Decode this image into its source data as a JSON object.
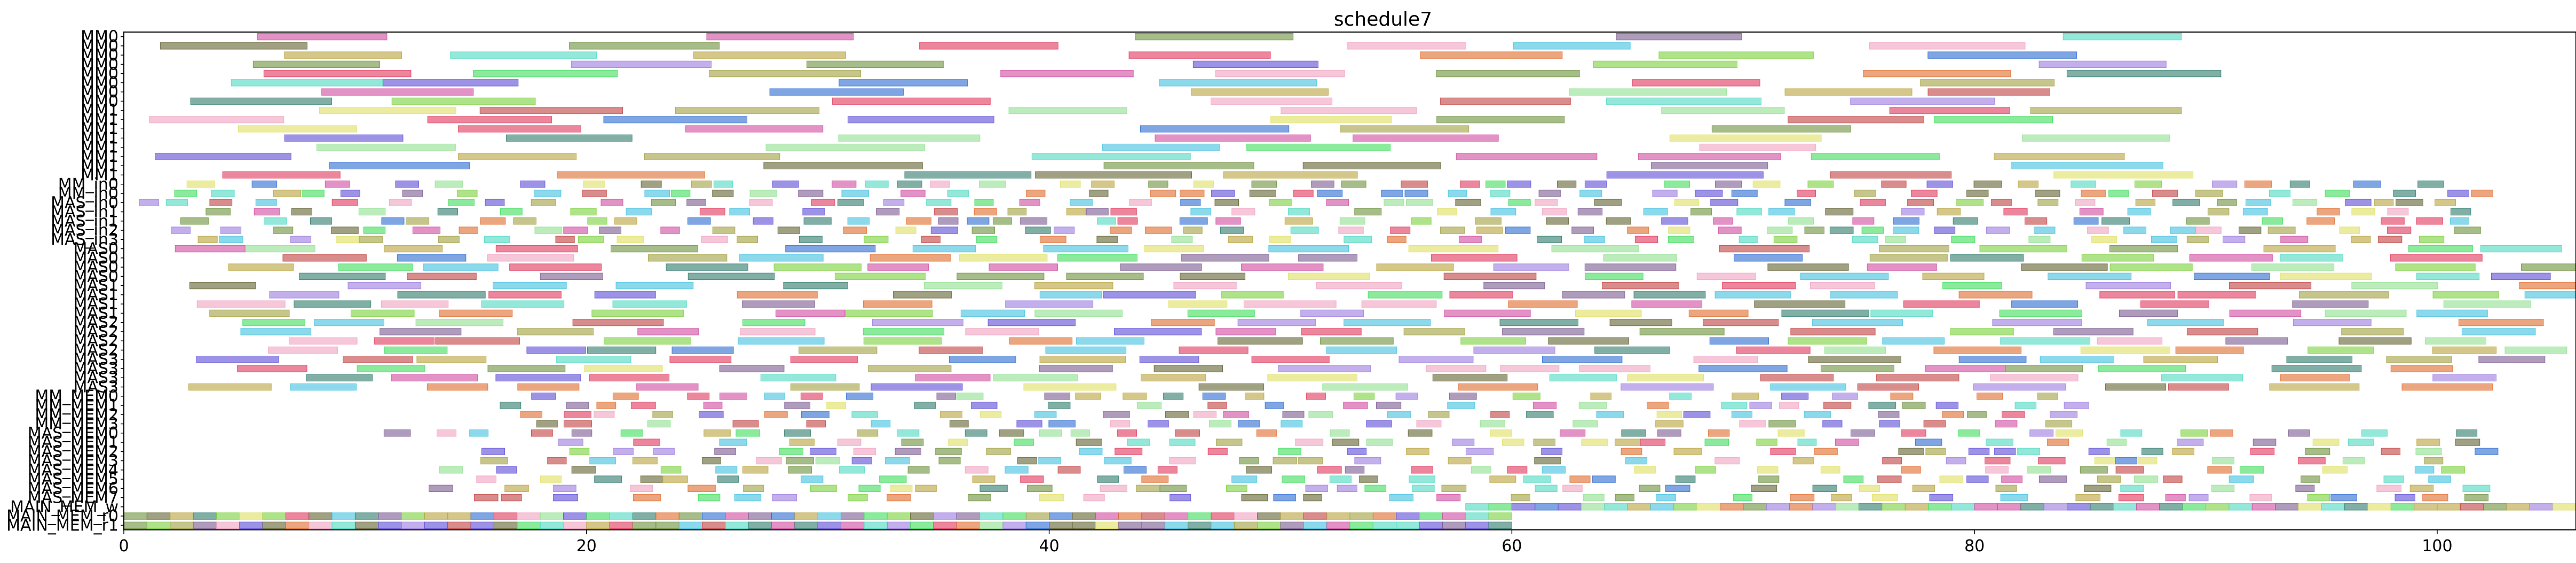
{
  "chart_data": {
    "type": "gantt",
    "title": "schedule7",
    "xlabel": "",
    "ylabel": "",
    "xlim": [
      0,
      106
    ],
    "x_ticks": [
      0,
      20,
      40,
      60,
      80,
      100
    ],
    "grid": false,
    "legend": "none",
    "rows": [
      "MM0",
      "MM0",
      "MM0",
      "MM0",
      "MM0",
      "MM0",
      "MM0",
      "MM0",
      "MM1",
      "MM1",
      "MM1",
      "MM1",
      "MM1",
      "MM1",
      "MM1",
      "MM1",
      "MM_in0",
      "MM_in0",
      "MAS_in0",
      "MAS_in1",
      "MAS_in1",
      "MAS_in2",
      "MAS_in3",
      "MAS0",
      "MAS0",
      "MAS0",
      "MAS0",
      "MAS1",
      "MAS1",
      "MAS1",
      "MAS1",
      "MAS2",
      "MAS2",
      "MAS2",
      "MAS2",
      "MAS3",
      "MAS3",
      "MAS3",
      "MAS3",
      "MM_MEM0",
      "MM_MEM1",
      "MM_MEM2",
      "MM_MEM3",
      "MAS_MEM0",
      "MAS_MEM1",
      "MAS_MEM2",
      "MAS_MEM3",
      "MAS_MEM4",
      "MAS_MEM5",
      "MAS_MEM6",
      "MAS_MEM7",
      "MAIN_MEM_w",
      "MAIN_MEM_r0",
      "MAIN_MEM_r1"
    ]
  }
}
